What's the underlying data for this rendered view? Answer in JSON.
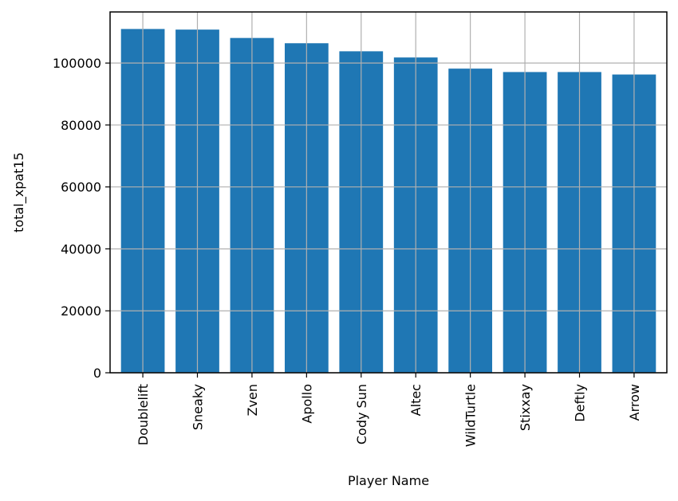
{
  "chart_data": {
    "type": "bar",
    "title": "",
    "xlabel": "Player Name",
    "ylabel": "total_xpat15",
    "categories": [
      "Doublelift",
      "Sneaky",
      "Zven",
      "Apollo",
      "Cody Sun",
      "Altec",
      "WildTurtle",
      "Stixxay",
      "Deftly",
      "Arrow"
    ],
    "values": [
      111000,
      110800,
      108100,
      106400,
      103800,
      101800,
      98200,
      97100,
      97100,
      96300
    ],
    "ylim": [
      0,
      116500
    ],
    "yticks": [
      0,
      20000,
      40000,
      60000,
      80000,
      100000
    ],
    "grid": true,
    "bar_color": "#1f77b4",
    "grid_color": "#b0b0b0"
  }
}
